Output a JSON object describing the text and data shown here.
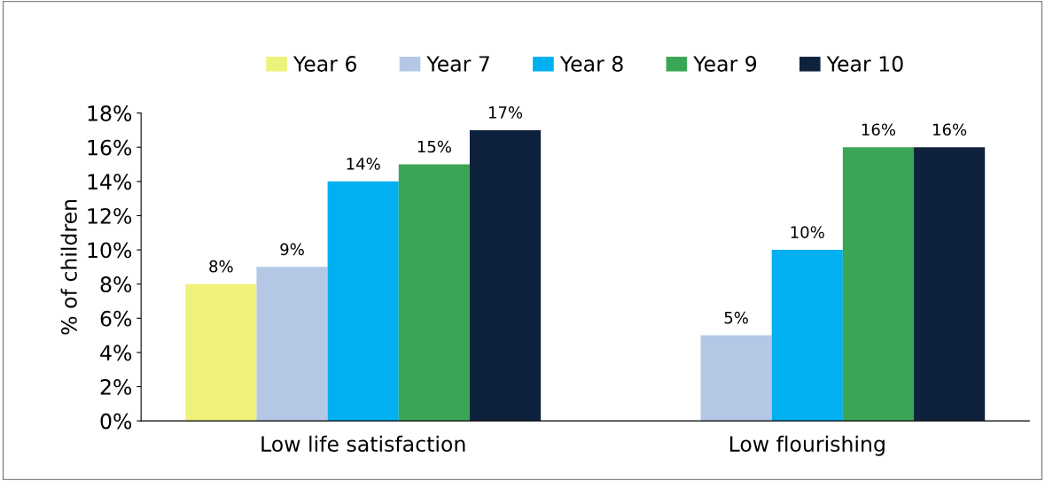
{
  "chart_data": {
    "type": "bar",
    "ylabel": "% of children",
    "categories": [
      "Low life satisfaction",
      "Low flourishing"
    ],
    "series": [
      {
        "name": "Year 6",
        "color": "#eef27a",
        "values": [
          8,
          null
        ],
        "value_labels": [
          "8%",
          null
        ]
      },
      {
        "name": "Year 7",
        "color": "#b4c8e6",
        "values": [
          9,
          5
        ],
        "value_labels": [
          "9%",
          "5%"
        ]
      },
      {
        "name": "Year 8",
        "color": "#00b0f0",
        "values": [
          14,
          10
        ],
        "value_labels": [
          "14%",
          "10%"
        ]
      },
      {
        "name": "Year 9",
        "color": "#3aa655",
        "values": [
          15,
          16
        ],
        "value_labels": [
          "15%",
          "16%"
        ]
      },
      {
        "name": "Year 10",
        "color": "#0f223d",
        "values": [
          17,
          16
        ],
        "value_labels": [
          "17%",
          "16%"
        ]
      }
    ],
    "ylim": [
      0,
      18
    ],
    "yticks": [
      {
        "value": 0,
        "label": "0%"
      },
      {
        "value": 2,
        "label": "2%"
      },
      {
        "value": 4,
        "label": "4%"
      },
      {
        "value": 6,
        "label": "6%"
      },
      {
        "value": 8,
        "label": "8%"
      },
      {
        "value": 10,
        "label": "10%"
      },
      {
        "value": 12,
        "label": "12%"
      },
      {
        "value": 14,
        "label": "14%"
      },
      {
        "value": 16,
        "label": "16%"
      },
      {
        "value": 18,
        "label": "18%"
      }
    ],
    "grid": false,
    "legend": "top"
  }
}
